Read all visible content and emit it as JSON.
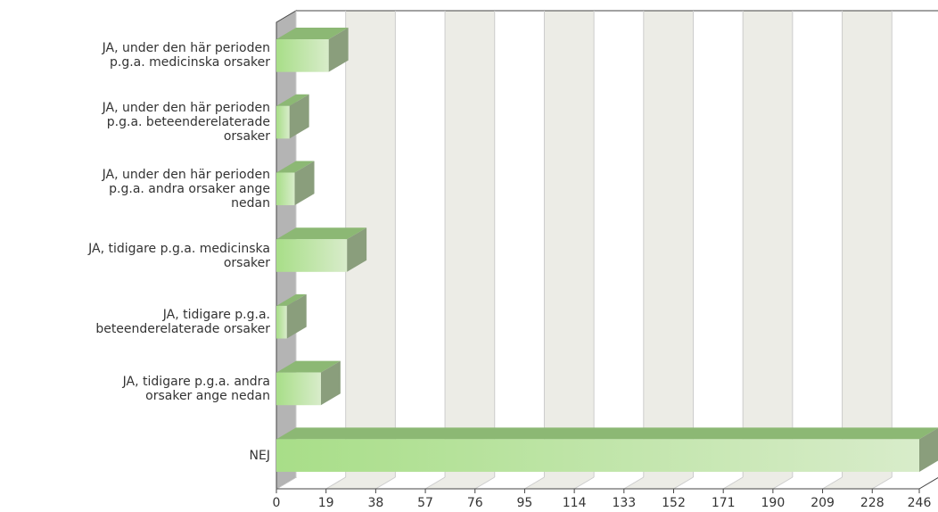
{
  "chart_data": {
    "type": "bar",
    "orientation": "horizontal",
    "categories": [
      "JA, under den här perioden\np.g.a. medicinska orsaker",
      "JA, under den här perioden\np.g.a. beteenderelaterade\norsaker",
      "JA, under den här perioden\np.g.a. andra orsaker ange\nnedan",
      "JA, tidigare p.g.a. medicinska\norsaker",
      "JA, tidigare p.g.a.\nbeteenderelaterade orsaker",
      "JA, tidigare p.g.a. andra\norsaker ange nedan",
      "NEJ"
    ],
    "values": [
      20,
      5,
      7,
      27,
      4,
      17,
      246
    ],
    "color": "#a8de88",
    "xlim": [
      0,
      246
    ],
    "xticks": [
      0,
      19,
      38,
      57,
      76,
      95,
      114,
      133,
      152,
      171,
      190,
      209,
      228,
      246
    ],
    "grid": true
  }
}
